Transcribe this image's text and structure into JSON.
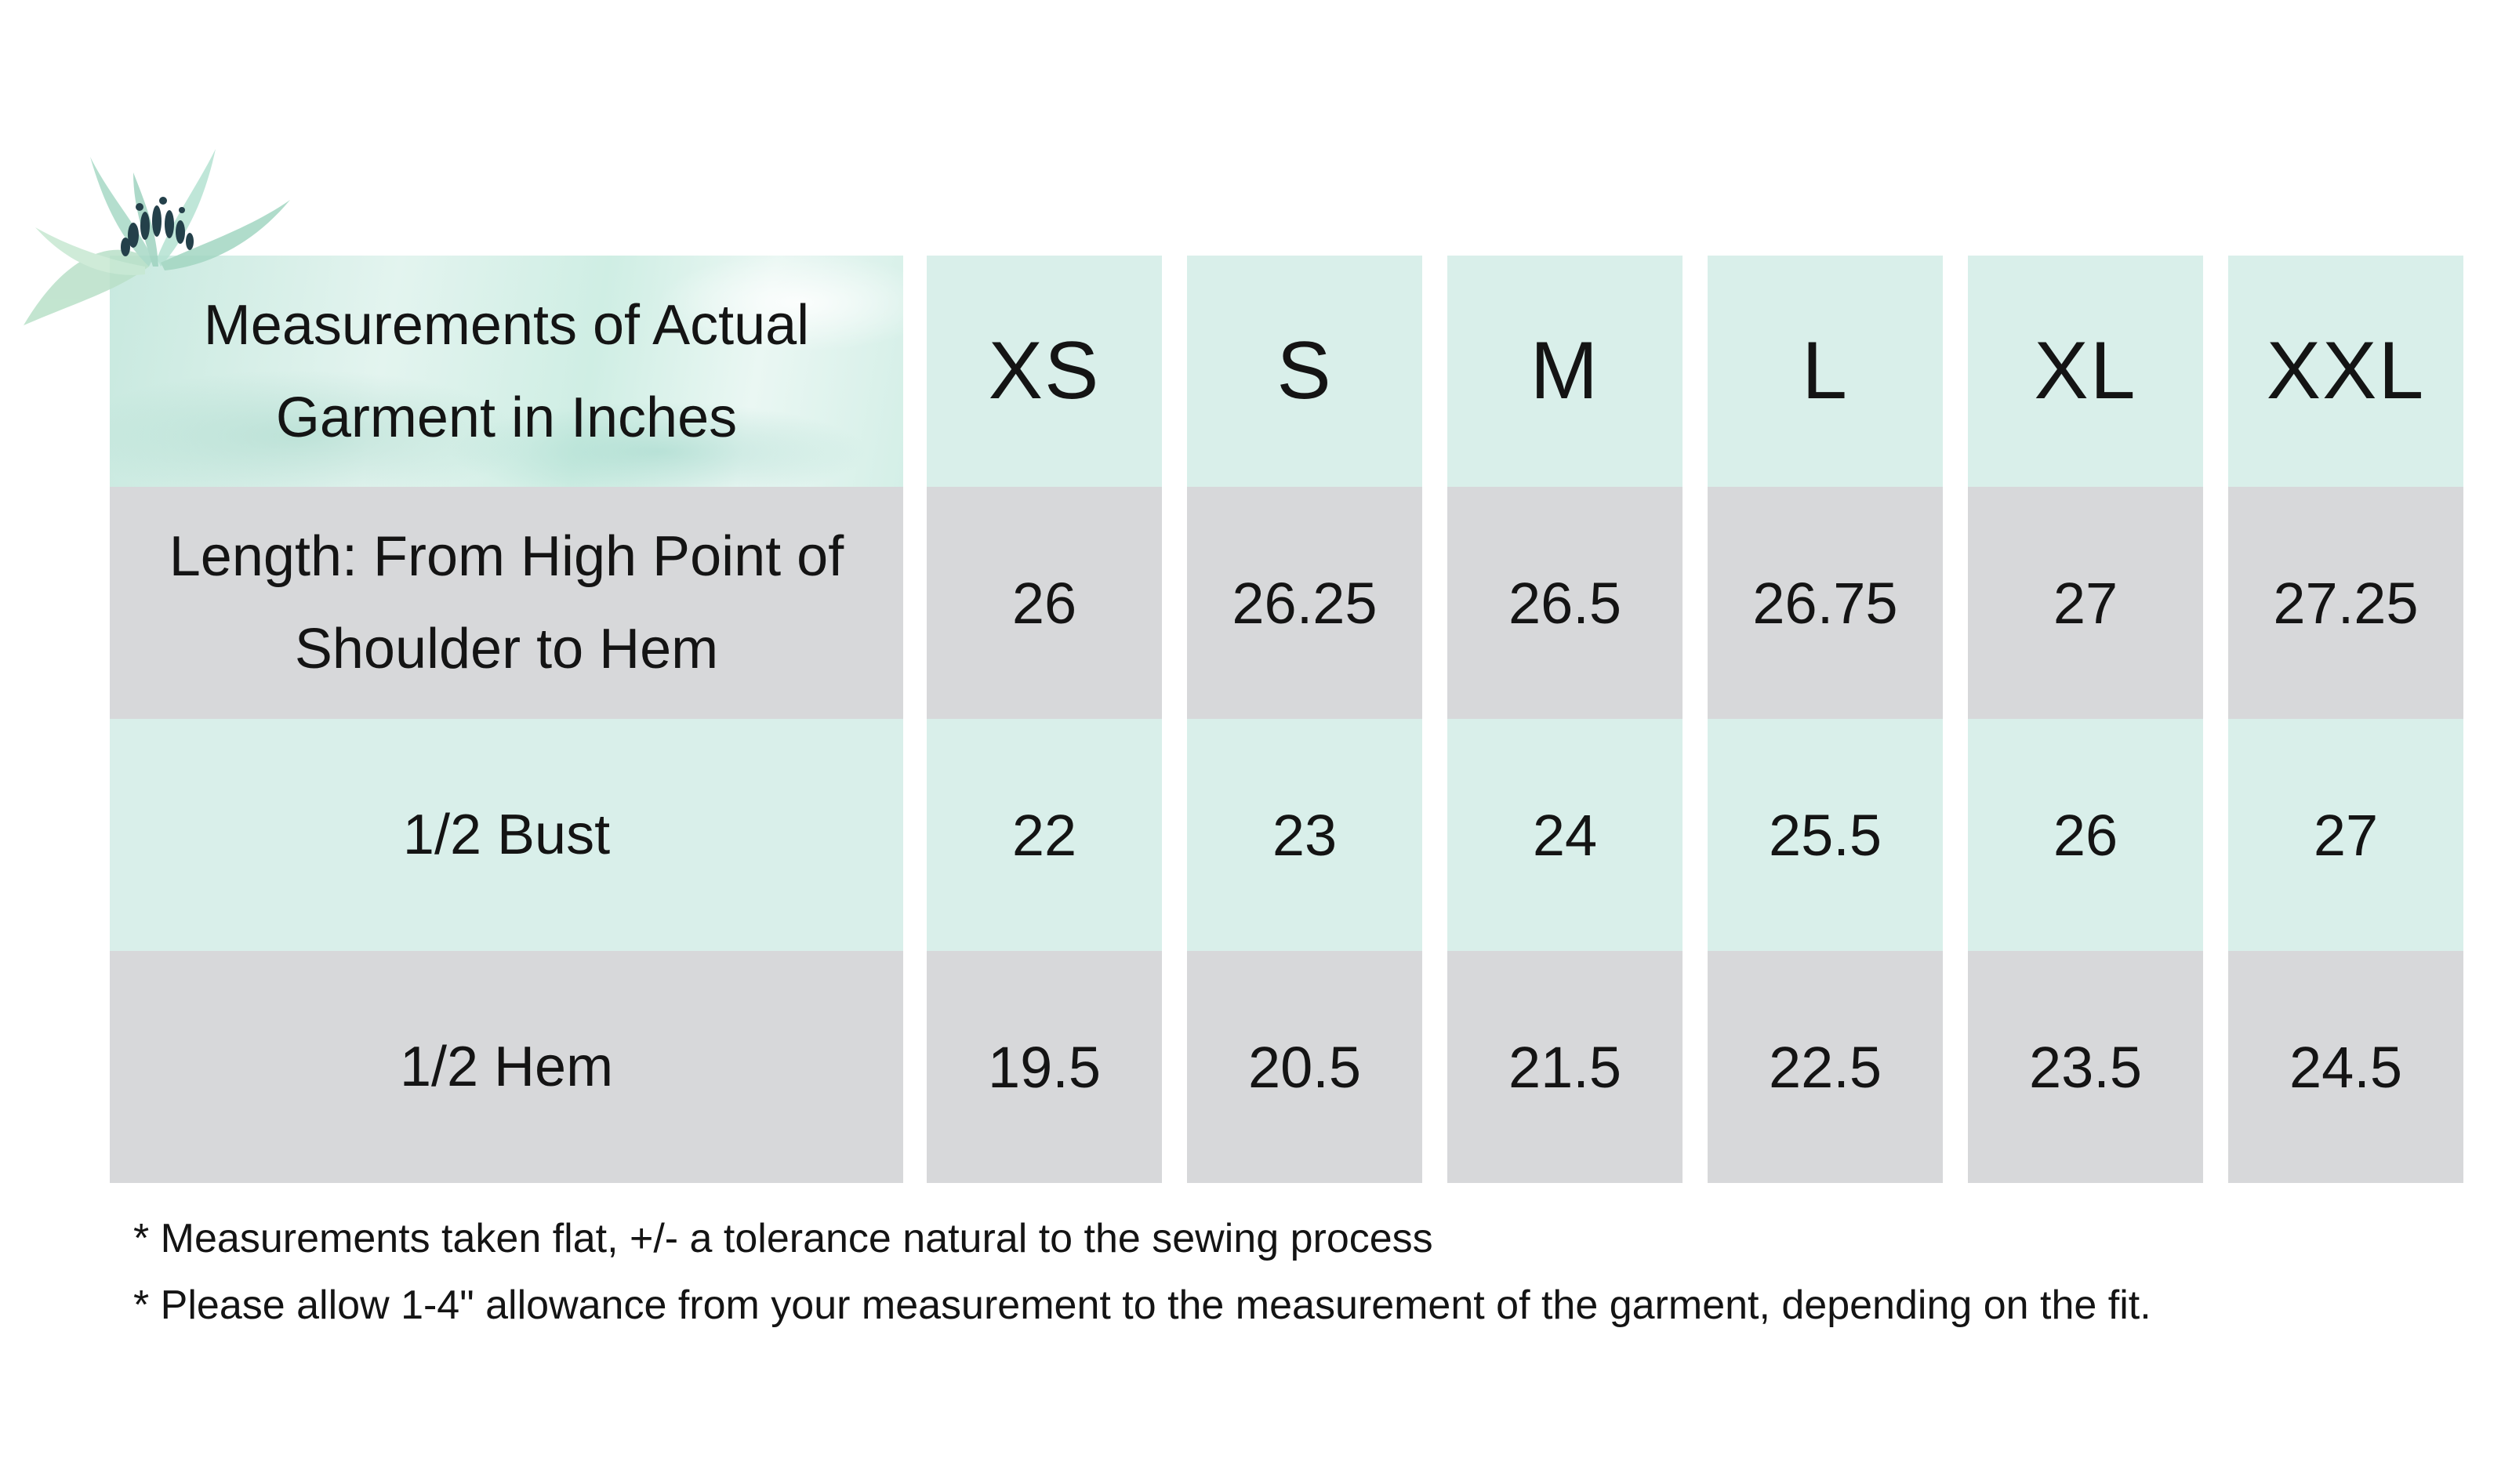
{
  "table": {
    "header_label": "Measurements of Actual Garment in Inches",
    "sizes": [
      "XS",
      "S",
      "M",
      "L",
      "XL",
      "XXL"
    ],
    "rows": [
      {
        "label": "Length: From High Point of Shoulder to Hem",
        "values": [
          "26",
          "26.25",
          "26.5",
          "26.75",
          "27",
          "27.25"
        ]
      },
      {
        "label": "1/2 Bust",
        "values": [
          "22",
          "23",
          "24",
          "25.5",
          "26",
          "27"
        ]
      },
      {
        "label": "1/2 Hem",
        "values": [
          "19.5",
          "20.5",
          "21.5",
          "22.5",
          "23.5",
          "24.5"
        ]
      }
    ]
  },
  "notes": [
    "* Measurements taken flat, +/- a tolerance natural to the sewing process",
    "* Please allow 1-4\" allowance from your measurement to the measurement of the garment, depending on the fit."
  ],
  "colors": {
    "mint": "#d9efea",
    "gray": "#d7d8da",
    "text": "#141414"
  },
  "icons": {
    "decoration": "watercolor-flower-icon"
  }
}
